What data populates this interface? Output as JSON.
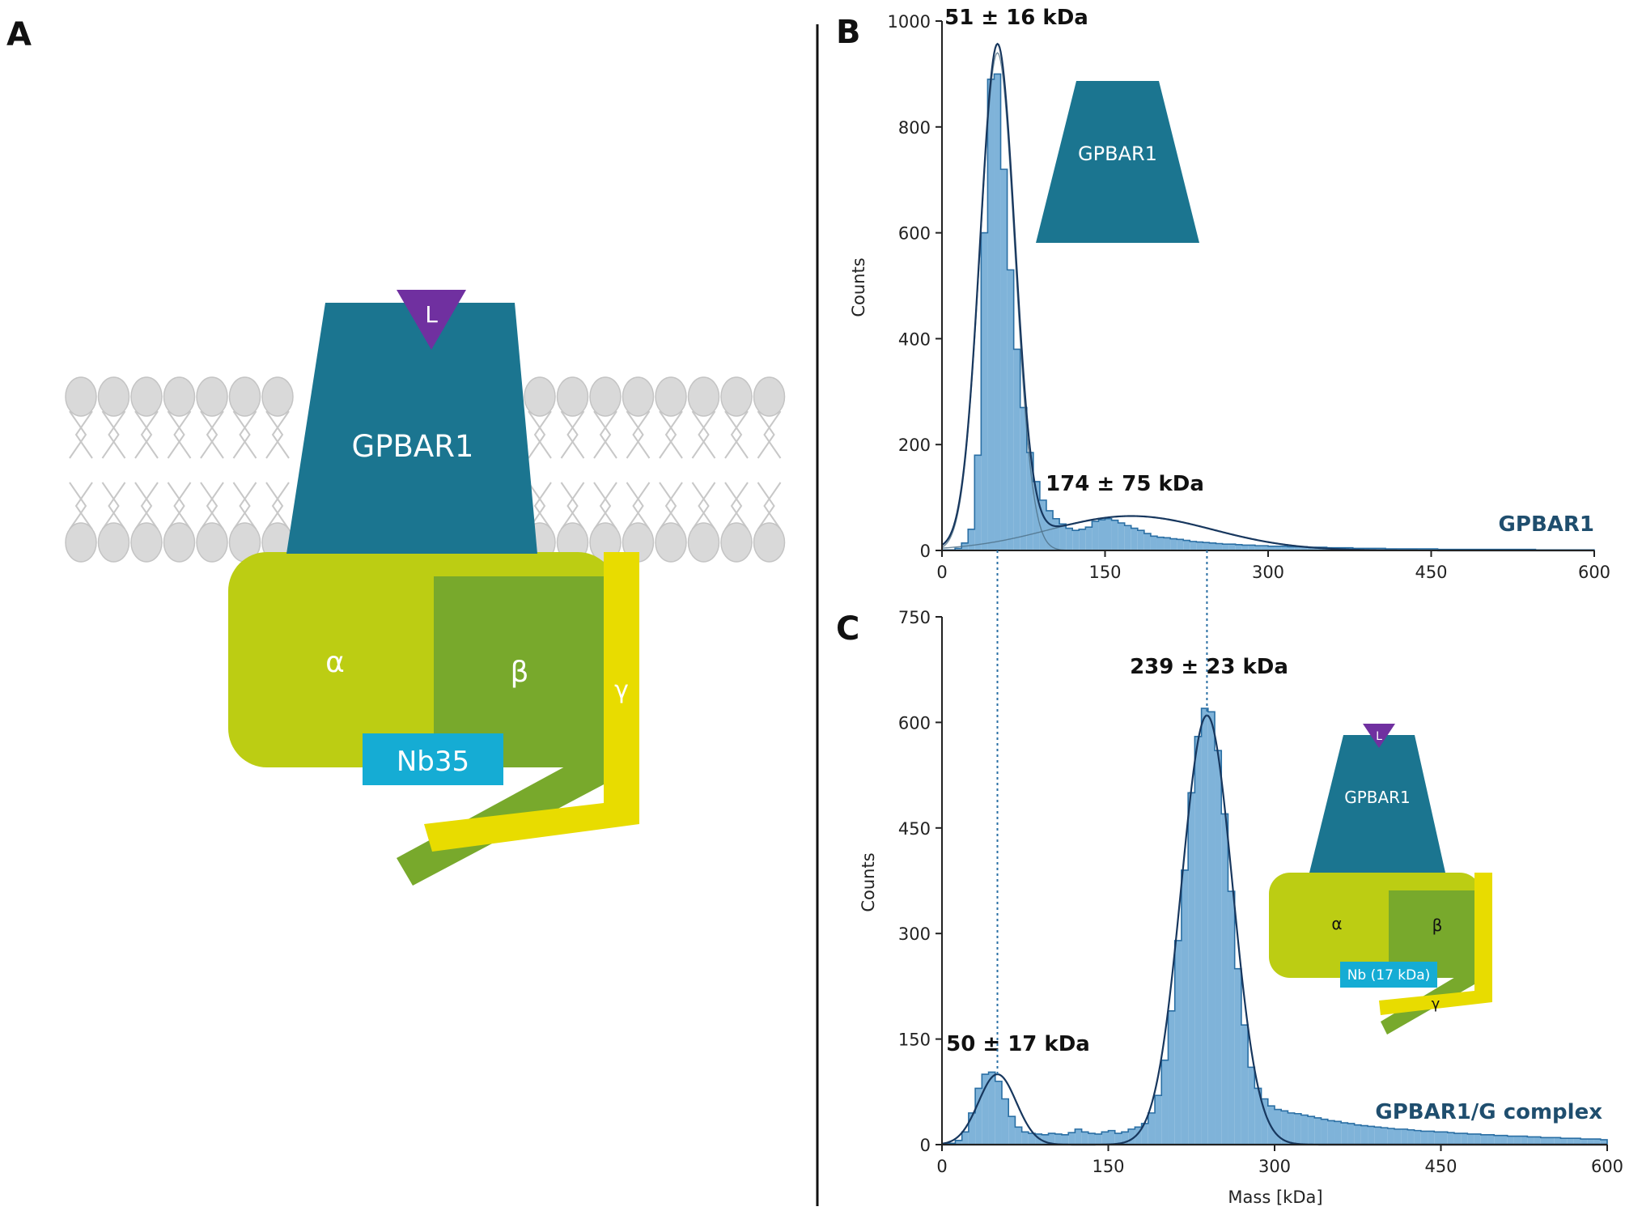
{
  "panels": {
    "a": "A",
    "b": "B",
    "c": "C"
  },
  "schematic": {
    "receptor": "GPBAR1",
    "ligand": "L",
    "alpha": "α",
    "beta": "β",
    "gamma": "γ",
    "nanobody": "Nb35"
  },
  "inset_b": {
    "receptor": "GPBAR1"
  },
  "inset_c": {
    "receptor": "GPBAR1",
    "ligand": "L",
    "alpha": "α",
    "beta": "β",
    "gamma": "γ",
    "nanobody": "Nb (17 kDa)"
  },
  "colors": {
    "receptor": "#1b7590",
    "ligand": "#7030a0",
    "alpha": "#bccd13",
    "beta": "#78a92c",
    "gamma": "#e8dc00",
    "nanobody": "#15acd4",
    "lipid": "#d9d9d9",
    "hist_fill": "#7fb3d9",
    "hist_edge": "#2a6fa4",
    "fit": "#17375e",
    "series_label": "#1f4e6e"
  },
  "chart_data": [
    {
      "type": "bar",
      "panel": "B",
      "xlabel": "",
      "ylabel": "Counts",
      "xlim": [
        0,
        600
      ],
      "ylim": [
        0,
        1000
      ],
      "xticks": [
        0,
        150,
        300,
        450,
        600
      ],
      "yticks": [
        0,
        200,
        400,
        600,
        800,
        1000
      ],
      "series_label": "GPBAR1",
      "peaks": [
        {
          "label": "51 ± 16 kDa",
          "mean": 51,
          "sigma": 16,
          "amplitude": 940
        },
        {
          "label": "174 ± 75 kDa",
          "mean": 174,
          "sigma": 75,
          "amplitude": 65
        }
      ],
      "histogram": {
        "bin_width": 6,
        "counts": [
          1,
          1,
          4,
          14,
          40,
          180,
          600,
          890,
          900,
          720,
          530,
          380,
          270,
          185,
          130,
          95,
          75,
          60,
          50,
          42,
          38,
          40,
          44,
          55,
          58,
          60,
          57,
          52,
          47,
          42,
          38,
          32,
          27,
          25,
          24,
          22,
          21,
          19,
          17,
          16,
          15,
          14,
          13,
          12,
          12,
          11,
          10,
          10,
          9,
          9,
          8,
          8,
          8,
          7,
          7,
          7,
          6,
          6,
          6,
          5,
          5,
          5,
          5,
          4,
          4,
          4,
          4,
          4,
          3,
          3,
          3,
          3,
          3,
          3,
          3,
          3,
          2,
          2,
          2,
          2,
          2,
          2,
          2,
          2,
          2,
          2,
          2,
          2,
          2,
          2,
          2,
          1,
          1,
          1,
          1,
          1,
          1,
          1,
          1,
          1
        ]
      }
    },
    {
      "type": "bar",
      "panel": "C",
      "xlabel": "Mass [kDa]",
      "ylabel": "Counts",
      "xlim": [
        0,
        600
      ],
      "ylim": [
        0,
        750
      ],
      "xticks": [
        0,
        150,
        300,
        450,
        600
      ],
      "yticks": [
        0,
        150,
        300,
        450,
        600,
        750
      ],
      "series_label": "GPBAR1/G complex",
      "peaks": [
        {
          "label": "50 ± 17 kDa",
          "mean": 50,
          "sigma": 17,
          "amplitude": 100
        },
        {
          "label": "239 ± 23 kDa",
          "mean": 239,
          "sigma": 23,
          "amplitude": 610
        }
      ],
      "histogram": {
        "bin_width": 6,
        "counts": [
          1,
          2,
          6,
          18,
          45,
          80,
          100,
          103,
          90,
          65,
          40,
          25,
          18,
          16,
          15,
          14,
          16,
          15,
          14,
          17,
          22,
          18,
          16,
          15,
          18,
          20,
          16,
          18,
          22,
          25,
          30,
          45,
          70,
          120,
          190,
          290,
          390,
          500,
          580,
          620,
          615,
          560,
          470,
          360,
          250,
          170,
          110,
          80,
          65,
          55,
          50,
          48,
          45,
          44,
          42,
          40,
          38,
          36,
          34,
          33,
          31,
          30,
          28,
          27,
          26,
          25,
          24,
          23,
          22,
          22,
          21,
          20,
          19,
          19,
          18,
          18,
          17,
          16,
          16,
          15,
          15,
          14,
          14,
          13,
          13,
          12,
          12,
          12,
          11,
          11,
          10,
          10,
          10,
          9,
          9,
          9,
          8,
          8,
          8,
          7
        ]
      }
    }
  ]
}
